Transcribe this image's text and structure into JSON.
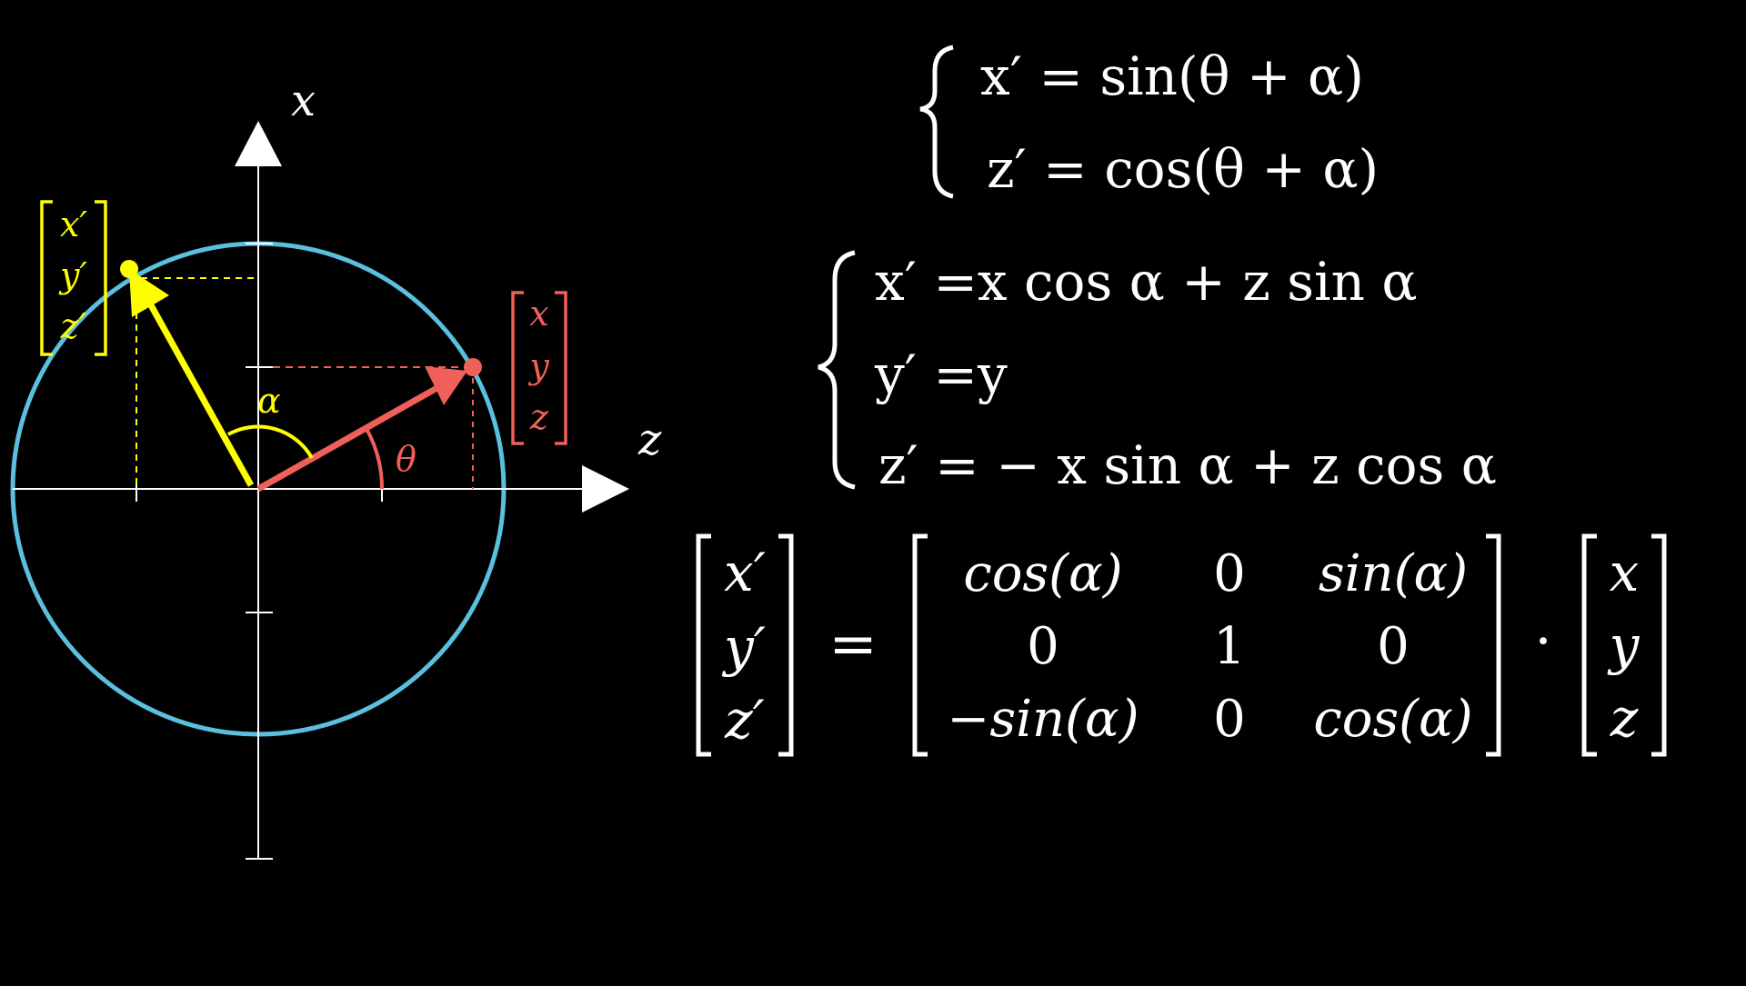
{
  "colors": {
    "background": "#000000",
    "axis": "#ffffff",
    "circle": "#5bc0de",
    "original_vector": "#f0605a",
    "rotated_vector": "#ffff00",
    "equation_text": "#ffffff"
  },
  "axes": {
    "vertical_label": "x",
    "horizontal_label": "z"
  },
  "angles": {
    "theta_label": "θ",
    "alpha_label": "α"
  },
  "original_vector": {
    "components": [
      "x",
      "y",
      "z"
    ]
  },
  "rotated_vector": {
    "components": [
      "x′",
      "y′",
      "z′"
    ]
  },
  "equation_1": {
    "lines": [
      "x′ = sin(θ + α)",
      "z′ = cos(θ + α)"
    ]
  },
  "equation_2": {
    "lines": [
      "x′ =x cos α + z sin α",
      "y′ =y",
      "z′ = − x sin α + z cos α"
    ]
  },
  "matrix_equation": {
    "lhs": [
      "x′",
      "y′",
      "z′"
    ],
    "equals": "=",
    "matrix": [
      [
        "cos(α)",
        "0",
        "sin(α)"
      ],
      [
        "0",
        "1",
        "0"
      ],
      [
        "−sin(α)",
        "0",
        "cos(α)"
      ]
    ],
    "dot": "·",
    "rhs": [
      "x",
      "y",
      "z"
    ]
  }
}
